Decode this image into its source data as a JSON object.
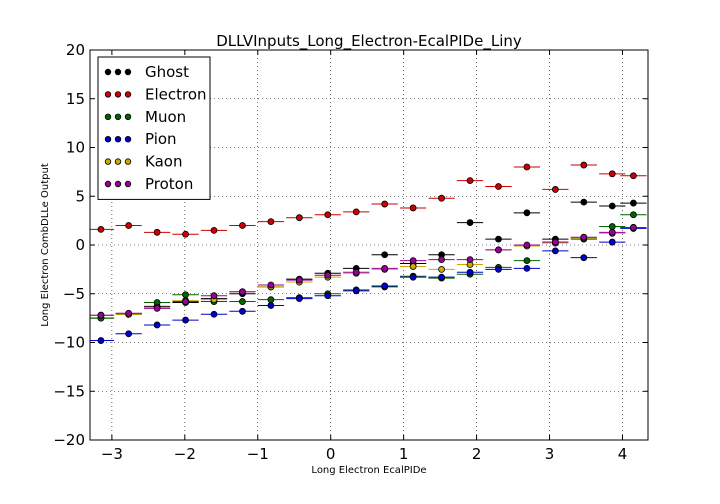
{
  "chart_data": {
    "type": "scatter",
    "title": "DLLVInputs_Long_Electron-EcalPIDe_Liny",
    "xlabel": "Long Electron EcalPIDe",
    "ylabel": "Long Electron CombDLLe Output",
    "xlim": [
      -3.3,
      4.35
    ],
    "ylim": [
      -20,
      20
    ],
    "xticks": [
      -3,
      -2,
      -1,
      0,
      1,
      2,
      3,
      4
    ],
    "yticks": [
      -20,
      -15,
      -10,
      -5,
      0,
      5,
      10,
      15,
      20
    ],
    "grid": true,
    "legend_position": "top-left",
    "bin_halfwidth": 0.18,
    "x": [
      -3.15,
      -2.77,
      -2.38,
      -1.99,
      -1.6,
      -1.21,
      -0.82,
      -0.43,
      -0.04,
      0.35,
      0.74,
      1.13,
      1.52,
      1.91,
      2.3,
      2.69,
      3.08,
      3.47,
      3.86,
      4.15
    ],
    "series": [
      {
        "name": "Ghost",
        "color": "#000000",
        "values": [
          -7.5,
          -7.1,
          -6.3,
          -5.9,
          -5.5,
          -5.0,
          -4.3,
          -3.5,
          -2.9,
          -2.4,
          -1.0,
          -1.9,
          -1.0,
          2.3,
          0.6,
          3.3,
          0.6,
          4.4,
          4.0,
          4.3
        ]
      },
      {
        "name": "Electron",
        "color": "#cc0000",
        "values": [
          1.6,
          2.0,
          1.3,
          1.1,
          1.5,
          2.0,
          2.4,
          2.8,
          3.1,
          3.4,
          4.2,
          3.8,
          4.8,
          6.6,
          6.0,
          8.0,
          5.7,
          8.2,
          7.3,
          7.1
        ]
      },
      {
        "name": "Muon",
        "color": "#006400",
        "values": [
          -7.5,
          -7.1,
          -5.9,
          -5.1,
          -5.8,
          -5.8,
          -5.6,
          -5.4,
          -5.0,
          -4.6,
          -4.3,
          -3.2,
          -3.4,
          -3.0,
          -2.3,
          -1.6,
          0.3,
          0.6,
          1.9,
          3.1
        ]
      },
      {
        "name": "Pion",
        "color": "#0000cc",
        "values": [
          -9.8,
          -9.1,
          -8.2,
          -7.7,
          -7.1,
          -6.8,
          -6.2,
          -5.5,
          -5.2,
          -4.7,
          -4.2,
          -3.3,
          -3.3,
          -2.8,
          -2.5,
          -2.4,
          -0.6,
          -1.3,
          0.3,
          1.7
        ]
      },
      {
        "name": "Kaon",
        "color": "#ccaa00",
        "values": [
          -7.2,
          -7.1,
          -6.4,
          -5.7,
          -5.6,
          -4.8,
          -4.3,
          -3.8,
          -3.3,
          -2.9,
          -2.5,
          -2.2,
          -2.5,
          -2.0,
          -0.5,
          -0.1,
          0.2,
          0.7,
          1.2,
          1.8
        ]
      },
      {
        "name": "Proton",
        "color": "#990099",
        "values": [
          -7.2,
          -7.0,
          -6.5,
          -5.8,
          -5.2,
          -4.8,
          -4.1,
          -3.6,
          -3.1,
          -2.8,
          -2.4,
          -1.6,
          -1.5,
          -1.5,
          -0.5,
          0.0,
          0.3,
          0.8,
          1.3,
          1.8
        ]
      }
    ]
  }
}
